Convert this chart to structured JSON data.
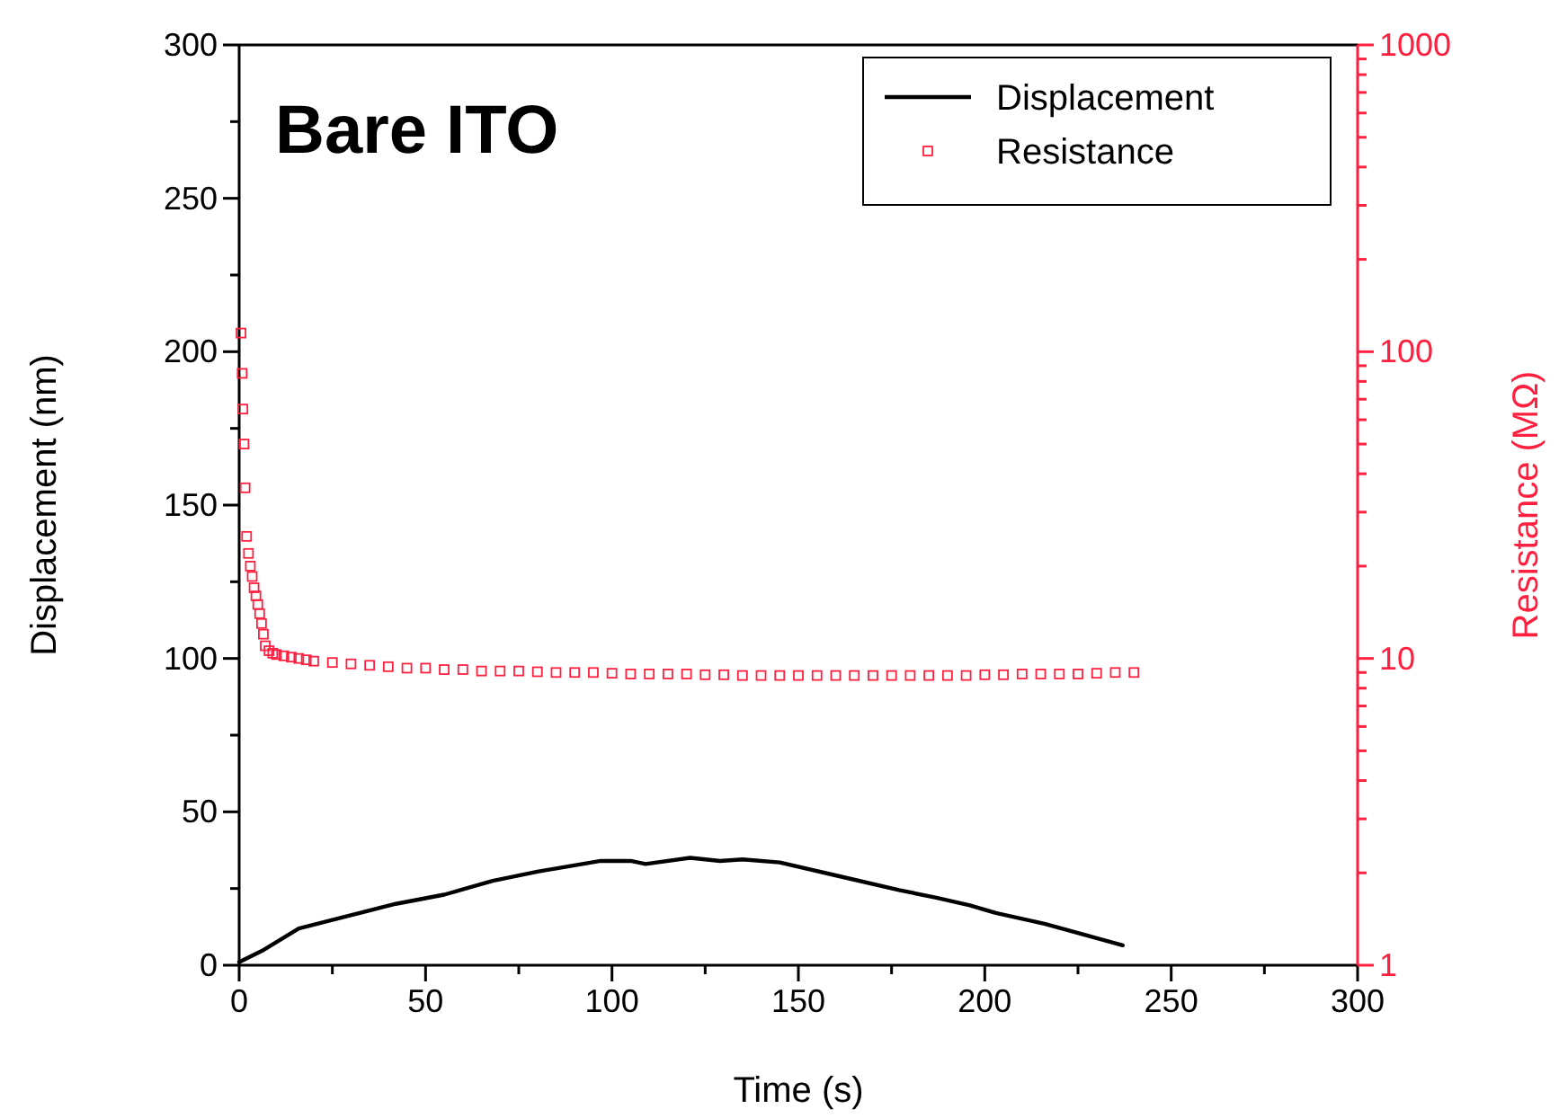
{
  "chart_data": {
    "type": "line",
    "xlabel": "Time (s)",
    "ylabel": "Displacement (nm)",
    "y2label": "Resistance (MΩ)",
    "annotations": [
      "Bare ITO"
    ],
    "xlim": [
      0,
      300
    ],
    "xticks": [
      0,
      {
        "value": 25,
        "label": null
      },
      50,
      {
        "value": 75,
        "label": null
      },
      100,
      {
        "value": 125,
        "label": null
      },
      150,
      {
        "value": 175,
        "label": null
      },
      200,
      {
        "value": 225,
        "label": null
      },
      250,
      {
        "value": 275,
        "label": null
      },
      300
    ],
    "ylim": [
      0,
      300
    ],
    "yticks": [
      0,
      {
        "value": 25,
        "label": null
      },
      50,
      {
        "value": 75,
        "label": null
      },
      100,
      {
        "value": 125,
        "label": null
      },
      150,
      {
        "value": 175,
        "label": null
      },
      200,
      {
        "value": 225,
        "label": null
      },
      250,
      {
        "value": 275,
        "label": null
      },
      300
    ],
    "y2lim": [
      1,
      1000
    ],
    "y2ticks": [
      1,
      {
        "value": 2,
        "label": null
      },
      {
        "value": 3,
        "label": null
      },
      {
        "value": 4,
        "label": null
      },
      {
        "value": 5,
        "label": null
      },
      {
        "value": 6,
        "label": null
      },
      {
        "value": 7,
        "label": null
      },
      {
        "value": 8,
        "label": null
      },
      {
        "value": 9,
        "label": null
      },
      10,
      {
        "value": 20,
        "label": null
      },
      {
        "value": 30,
        "label": null
      },
      {
        "value": 40,
        "label": null
      },
      {
        "value": 50,
        "label": null
      },
      {
        "value": 60,
        "label": null
      },
      {
        "value": 70,
        "label": null
      },
      {
        "value": 80,
        "label": null
      },
      {
        "value": 90,
        "label": null
      },
      100,
      {
        "value": 200,
        "label": null
      },
      {
        "value": 300,
        "label": null
      },
      {
        "value": 400,
        "label": null
      },
      {
        "value": 500,
        "label": null
      },
      {
        "value": 600,
        "label": null
      },
      {
        "value": 700,
        "label": null
      },
      {
        "value": 800,
        "label": null
      },
      {
        "value": 900,
        "label": null
      },
      1000
    ],
    "log": "y2",
    "grid": false,
    "legend": "top right",
    "series": [
      {
        "name": "Displacement",
        "color": "#000000",
        "line_style": "solid",
        "marker": "none",
        "x": [
          0,
          6.6,
          16,
          29,
          42,
          55,
          68,
          80,
          97,
          105,
          109,
          121,
          129,
          135,
          145,
          161,
          177,
          187,
          196,
          203,
          216,
          225,
          237
        ],
        "values": [
          1,
          5,
          12,
          16,
          20,
          23,
          27.5,
          30.5,
          34,
          34,
          33,
          35,
          34,
          34.5,
          33.5,
          29,
          24.5,
          22,
          19.5,
          17,
          13.5,
          10.5,
          6.5
        ]
      },
      {
        "name": "Resistance",
        "type": "scatter",
        "axis": "y2",
        "color": "#ff2040",
        "marker": "square",
        "x": [
          0.5,
          0.8,
          1,
          1.3,
          1.6,
          2,
          2.5,
          3,
          3.5,
          4,
          4.5,
          5,
          5.5,
          6,
          6.5,
          7,
          8,
          9,
          10,
          12,
          14,
          16,
          18,
          20,
          25,
          30,
          35,
          40,
          45,
          50,
          55,
          60,
          65,
          70,
          75,
          80,
          85,
          90,
          95,
          100,
          105,
          110,
          115,
          120,
          125,
          130,
          135,
          140,
          145,
          150,
          155,
          160,
          165,
          170,
          175,
          180,
          185,
          190,
          195,
          200,
          205,
          210,
          215,
          220,
          225,
          230,
          235,
          240
        ],
        "values": [
          115,
          85,
          65,
          50,
          36,
          25,
          22,
          20,
          18.5,
          17,
          16,
          15,
          14,
          13,
          12,
          11,
          10.6,
          10.4,
          10.3,
          10.2,
          10.1,
          10,
          9.9,
          9.8,
          9.7,
          9.6,
          9.5,
          9.4,
          9.3,
          9.3,
          9.2,
          9.2,
          9.1,
          9.1,
          9.1,
          9.05,
          9.0,
          9.0,
          9.0,
          8.95,
          8.9,
          8.9,
          8.9,
          8.9,
          8.85,
          8.85,
          8.8,
          8.8,
          8.8,
          8.8,
          8.8,
          8.8,
          8.8,
          8.8,
          8.8,
          8.8,
          8.8,
          8.8,
          8.8,
          8.85,
          8.85,
          8.9,
          8.9,
          8.9,
          8.9,
          8.95,
          9.0,
          9.0
        ]
      }
    ]
  }
}
